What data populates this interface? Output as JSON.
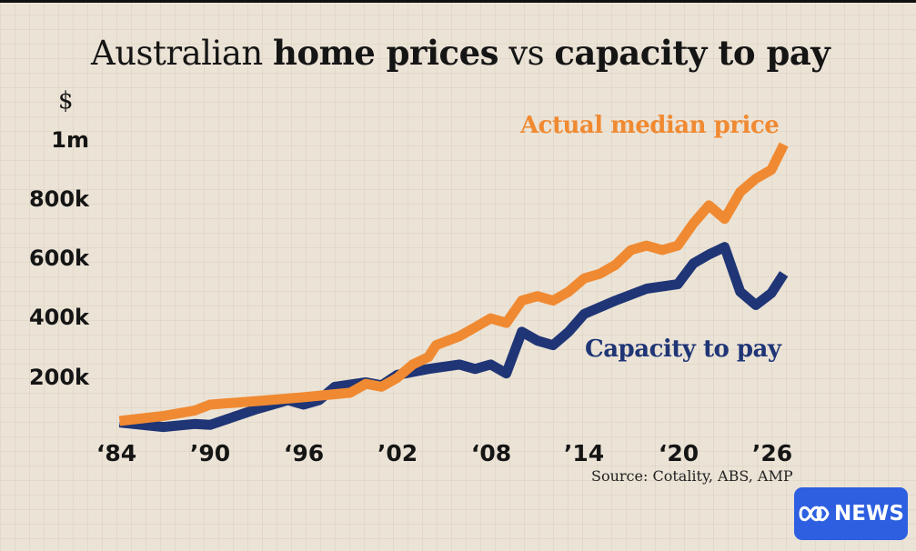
{
  "chart_data": {
    "type": "line",
    "title": "Australian home prices vs capacity to pay",
    "title_parts": [
      {
        "text": "Australian ",
        "bold": false
      },
      {
        "text": "home prices",
        "bold": true
      },
      {
        "text": " vs ",
        "bold": false
      },
      {
        "text": "capacity to pay",
        "bold": true
      }
    ],
    "ylabel": "$",
    "xlabel": "",
    "ylim": [
      0,
      1000000
    ],
    "xlim": [
      1984,
      2027
    ],
    "yticks": [
      {
        "value": 200000,
        "label": "200k"
      },
      {
        "value": 400000,
        "label": "400k"
      },
      {
        "value": 600000,
        "label": "600k"
      },
      {
        "value": 800000,
        "label": "800k"
      },
      {
        "value": 1000000,
        "label": "1m"
      }
    ],
    "xticks": [
      {
        "value": 1984,
        "label": "‘84"
      },
      {
        "value": 1990,
        "label": "’90"
      },
      {
        "value": 1996,
        "label": "‘96"
      },
      {
        "value": 2002,
        "label": "’02"
      },
      {
        "value": 2008,
        "label": "‘08"
      },
      {
        "value": 2014,
        "label": "’14"
      },
      {
        "value": 2020,
        "label": "‘20"
      },
      {
        "value": 2026,
        "label": "’26"
      }
    ],
    "grid": true,
    "series": [
      {
        "name": "Actual median price",
        "color": "#f08a32",
        "points": [
          [
            1984.2,
            55000
          ],
          [
            1987,
            72000
          ],
          [
            1989,
            90000
          ],
          [
            1990,
            110000
          ],
          [
            1993,
            122000
          ],
          [
            1996,
            135000
          ],
          [
            1999,
            150000
          ],
          [
            2000,
            180000
          ],
          [
            2001,
            170000
          ],
          [
            2002,
            200000
          ],
          [
            2003,
            245000
          ],
          [
            2004,
            270000
          ],
          [
            2004.5,
            310000
          ],
          [
            2006,
            340000
          ],
          [
            2007,
            370000
          ],
          [
            2008,
            400000
          ],
          [
            2009,
            385000
          ],
          [
            2010,
            460000
          ],
          [
            2011,
            475000
          ],
          [
            2012,
            460000
          ],
          [
            2013,
            490000
          ],
          [
            2014,
            535000
          ],
          [
            2015,
            550000
          ],
          [
            2016,
            580000
          ],
          [
            2017,
            630000
          ],
          [
            2018,
            645000
          ],
          [
            2019,
            630000
          ],
          [
            2020,
            645000
          ],
          [
            2021,
            720000
          ],
          [
            2022,
            780000
          ],
          [
            2023,
            735000
          ],
          [
            2024,
            825000
          ],
          [
            2025,
            870000
          ],
          [
            2026,
            900000
          ],
          [
            2026.8,
            985000
          ]
        ]
      },
      {
        "name": "Capacity to pay",
        "color": "#1f3576",
        "points": [
          [
            1984.2,
            50000
          ],
          [
            1987,
            35000
          ],
          [
            1989,
            45000
          ],
          [
            1990,
            42000
          ],
          [
            1993,
            95000
          ],
          [
            1995,
            125000
          ],
          [
            1996,
            110000
          ],
          [
            1997,
            125000
          ],
          [
            1998,
            170000
          ],
          [
            2000,
            185000
          ],
          [
            2001,
            175000
          ],
          [
            2002,
            210000
          ],
          [
            2004,
            230000
          ],
          [
            2006,
            245000
          ],
          [
            2007,
            230000
          ],
          [
            2008,
            245000
          ],
          [
            2009,
            215000
          ],
          [
            2010,
            355000
          ],
          [
            2011,
            325000
          ],
          [
            2012,
            310000
          ],
          [
            2013,
            355000
          ],
          [
            2014,
            415000
          ],
          [
            2016,
            460000
          ],
          [
            2018,
            500000
          ],
          [
            2020,
            515000
          ],
          [
            2021,
            585000
          ],
          [
            2022,
            615000
          ],
          [
            2023,
            640000
          ],
          [
            2024,
            490000
          ],
          [
            2025,
            445000
          ],
          [
            2026,
            485000
          ],
          [
            2026.8,
            550000
          ]
        ]
      }
    ],
    "annotations": [
      {
        "text": "Actual median price",
        "series": "Actual median price"
      },
      {
        "text": "Capacity to pay",
        "series": "Capacity to pay"
      }
    ],
    "source": "Source: Cotality, ABS, AMP"
  },
  "branding": {
    "logo_text": "NEWS",
    "logo_color": "#2d5fe0"
  }
}
